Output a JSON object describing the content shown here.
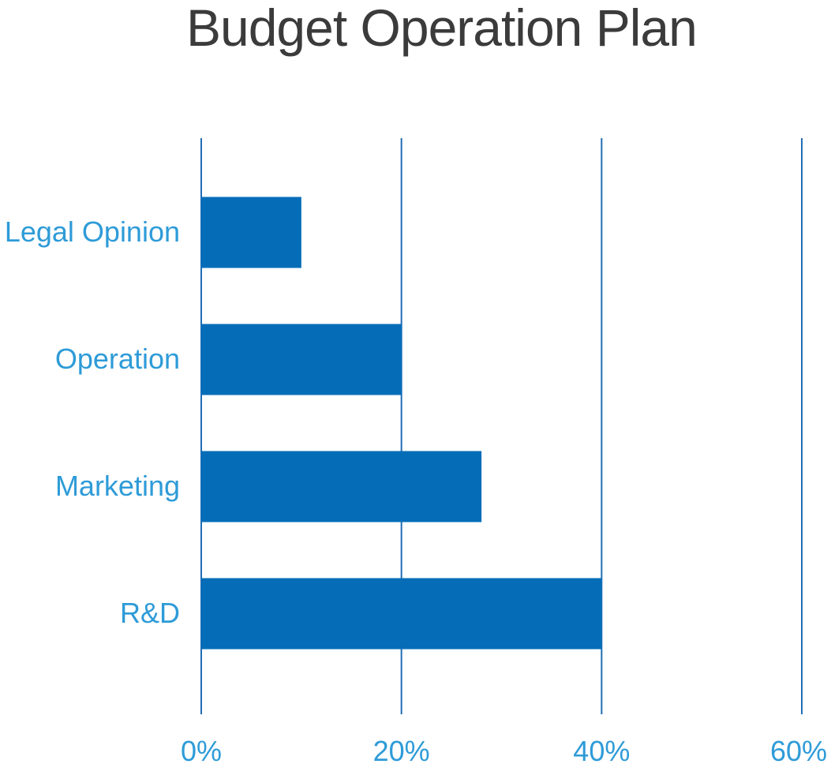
{
  "chart_data": {
    "type": "bar",
    "orientation": "horizontal",
    "title": "Budget Operation Plan",
    "categories": [
      "Legal Opinion",
      "Operation",
      "Marketing",
      "R&D"
    ],
    "values": [
      10,
      20,
      28,
      40
    ],
    "x_ticks": [
      "0%",
      "20%",
      "40%",
      "60%"
    ],
    "xlim": [
      0,
      60
    ],
    "xlabel": "",
    "ylabel": "",
    "grid": true,
    "legend": "none"
  },
  "colors": {
    "bar": "#056db8",
    "gridline": "#1f6eb5",
    "label": "#2e9bd8",
    "title": "#3b3b3b"
  }
}
